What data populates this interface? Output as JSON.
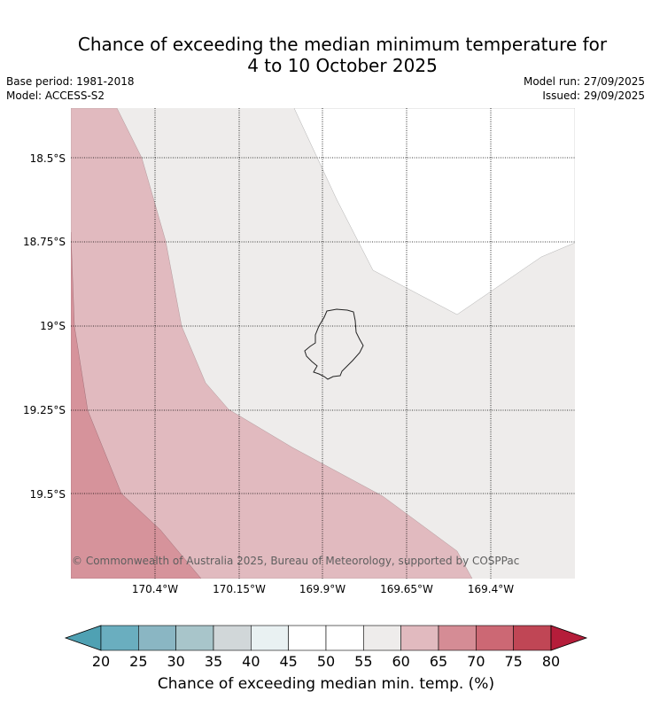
{
  "header": {
    "title_line1": "Chance of exceeding the median minimum temperature for",
    "title_line2": "4 to 10 October 2025",
    "base_period": "Base period: 1981-2018",
    "model": "Model: ACCESS-S2",
    "model_run": "Model run: 27/09/2025",
    "issued": "Issued: 29/09/2025"
  },
  "map": {
    "latitude_labels": [
      "18.5°S",
      "18.75°S",
      "19°S",
      "19.25°S",
      "19.5°S"
    ],
    "longitude_labels": [
      "170.4°W",
      "170.15°W",
      "169.9°W",
      "169.65°W",
      "169.4°W"
    ],
    "copyright": "© Commonwealth of Australia 2025, Bureau of Meteorology, supported by COSPPac",
    "island_outline_color": "#222222",
    "region_colors": {
      "above_70": "#d6939b",
      "65_to_70": "#e1babf",
      "55_to_60": "#eeeceb",
      "below_55": "#ffffff"
    }
  },
  "colorbar": {
    "ticks": [
      "20",
      "25",
      "30",
      "35",
      "40",
      "45",
      "50",
      "55",
      "60",
      "65",
      "70",
      "75",
      "80"
    ],
    "colors": [
      "#4fa1b3",
      "#6aaebf",
      "#8ab6c3",
      "#a8c5ca",
      "#d1d7d9",
      "#e9f1f2",
      "#ffffff",
      "#ffffff",
      "#eeeceb",
      "#e1babf",
      "#d58c95",
      "#cc6874",
      "#c04655",
      "#b51d3a"
    ],
    "title": "Chance of exceeding median min. temp. (%)"
  }
}
